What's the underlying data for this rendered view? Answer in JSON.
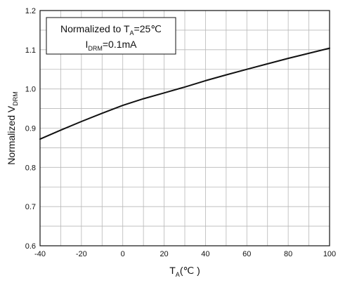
{
  "chart_data": {
    "type": "line",
    "title": "",
    "xlabel": {
      "main": "T",
      "sub": "A",
      "unit": "(℃ )"
    },
    "ylabel": {
      "main": "Normalized  V",
      "sub": "DRM"
    },
    "xlim": [
      -40,
      100
    ],
    "ylim": [
      0.6,
      1.2
    ],
    "x_ticks": [
      "-40",
      "-20",
      "0",
      "20",
      "40",
      "60",
      "80",
      "100"
    ],
    "y_ticks": [
      "0.6",
      "0.7",
      "0.8",
      "0.9",
      "1.0",
      "1.1",
      "1.2"
    ],
    "x_minor_step": 10,
    "y_minor_step": 0.05,
    "grid": true,
    "legend_position": "top-left",
    "annotation": {
      "line1": {
        "prefix": "Normalized to T",
        "sub": "A",
        "suffix": "=25℃"
      },
      "line2": {
        "prefix": "I",
        "sub": "DRM",
        "suffix": "=0.1mA"
      }
    },
    "series": [
      {
        "x": [
          -40,
          -30,
          -20,
          -10,
          0,
          10,
          20,
          30,
          40,
          50,
          60,
          70,
          80,
          90,
          100
        ],
        "values": [
          0.872,
          0.895,
          0.917,
          0.938,
          0.958,
          0.975,
          0.99,
          1.005,
          1.021,
          1.036,
          1.05,
          1.064,
          1.078,
          1.091,
          1.104
        ],
        "color": "#111111"
      }
    ]
  }
}
